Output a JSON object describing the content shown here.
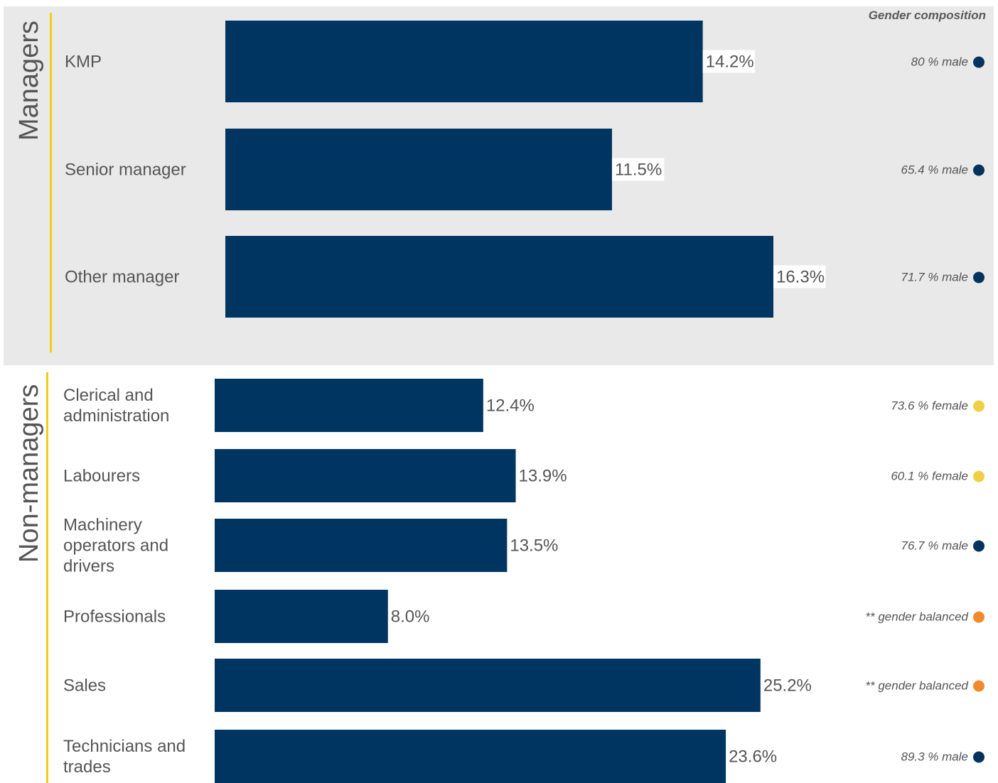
{
  "chart_data": {
    "type": "bar",
    "orientation": "horizontal",
    "header": "Gender composition",
    "colors": {
      "bar": "#003561",
      "male": "#05335e",
      "female": "#f0cf45",
      "balanced": "#f28a2d",
      "group_accent": "#f4cc14",
      "managers_background": "#e9e9e9"
    },
    "groups": [
      {
        "name": "Managers",
        "categories": [
          "KMP",
          "Senior manager",
          "Other manager"
        ],
        "values": [
          14.2,
          11.5,
          16.3
        ],
        "value_labels": [
          "14.2%",
          "11.5%",
          "16.3%"
        ],
        "gender_labels": [
          "80 % male",
          "65.4 % male",
          "71.7 % male"
        ],
        "gender_types": [
          "male",
          "male",
          "male"
        ]
      },
      {
        "name": "Non-managers",
        "categories": [
          "Clerical and administration",
          "Labourers",
          "Machinery operators and drivers",
          "Professionals",
          "Sales",
          "Technicians and trades"
        ],
        "values": [
          12.4,
          13.9,
          13.5,
          8.0,
          25.2,
          23.6
        ],
        "value_labels": [
          "12.4%",
          "13.9%",
          "13.5%",
          "8.0%",
          "25.2%",
          "23.6%"
        ],
        "gender_labels": [
          "73.6 % female",
          "60.1 % female",
          "76.7 % male",
          "** gender balanced",
          "** gender balanced",
          "89.3 % male"
        ],
        "gender_types": [
          "female",
          "female",
          "male",
          "balanced",
          "balanced",
          "male"
        ]
      }
    ]
  }
}
